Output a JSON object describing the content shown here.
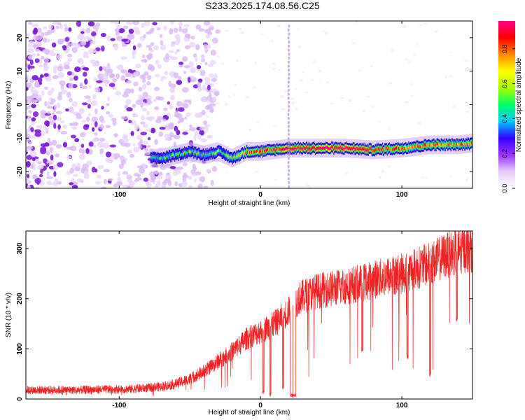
{
  "figure_title": "S233.2025.174.08.56.C25",
  "chart_data": [
    {
      "type": "heatmap",
      "xlabel": "Height of straight line (km)",
      "ylabel": "Frequency (Hz)",
      "xlim": [
        -166,
        150
      ],
      "ylim": [
        -25,
        25
      ],
      "xticks": [
        -100,
        0,
        100
      ],
      "yticks": [
        20,
        10,
        0,
        -10,
        -20
      ],
      "grid": false,
      "colorbar": {
        "label": "Normalized spectral amplitude",
        "range": [
          0,
          0.96
        ],
        "ticks": [
          "0.0",
          "0.2",
          "0.4",
          "0.6",
          "0.8"
        ],
        "colors": [
          "#ffffff",
          "#e6ccff",
          "#9933ff",
          "#3300ff",
          "#00ccff",
          "#00ff66",
          "#aaff00",
          "#ffff00",
          "#ff8800",
          "#ff0000",
          "#ff0088"
        ]
      },
      "ridge": {
        "description_x": [
          -78,
          -70,
          -60,
          -50,
          -40,
          -30,
          -20,
          -10,
          0,
          20,
          40,
          60,
          80,
          100,
          120,
          140,
          150
        ],
        "freq_hz": [
          -16,
          -16,
          -15,
          -14,
          -15,
          -14,
          -16,
          -14,
          -14,
          -13,
          -13,
          -13,
          -13.5,
          -13,
          -12,
          -12,
          -11.5
        ],
        "amplitude": [
          0.4,
          0.45,
          0.5,
          0.5,
          0.45,
          0.5,
          0.6,
          0.75,
          0.8,
          0.9,
          0.95,
          0.95,
          0.85,
          0.8,
          0.8,
          0.75,
          0.7
        ]
      },
      "noise_region_x": [
        -166,
        -40
      ],
      "vertical_artifact_x": 20
    },
    {
      "type": "line",
      "xlabel": "Height of straight line (km)",
      "ylabel": "SNR (10 * v/v)",
      "xlim": [
        -166,
        150
      ],
      "ylim": [
        0,
        335
      ],
      "xticks": [
        -100,
        0,
        100
      ],
      "yticks": [
        0,
        100,
        200,
        300
      ],
      "grid": false,
      "series": [
        {
          "color": "#ee2222",
          "x": [
            -166,
            -150,
            -130,
            -110,
            -90,
            -80,
            -70,
            -60,
            -50,
            -40,
            -30,
            -20,
            -10,
            0,
            10,
            20,
            25,
            30,
            40,
            50,
            60,
            70,
            80,
            90,
            100,
            110,
            120,
            130,
            140,
            150
          ],
          "y": [
            18,
            18,
            18,
            19,
            20,
            22,
            25,
            30,
            40,
            55,
            75,
            95,
            120,
            135,
            150,
            175,
            195,
            205,
            215,
            220,
            225,
            230,
            238,
            245,
            250,
            260,
            270,
            285,
            295,
            300
          ]
        }
      ],
      "dropouts": [
        {
          "x": 23,
          "width_km": 4,
          "y_min": 3
        },
        {
          "x": 2,
          "width_km": 1,
          "y_min": 10
        },
        {
          "x": 7,
          "width_km": 1,
          "y_min": 5
        },
        {
          "x": 16,
          "width_km": 1,
          "y_min": 20
        },
        {
          "x": 72,
          "width_km": 1,
          "y_min": 95
        },
        {
          "x": 104,
          "width_km": 1,
          "y_min": 80
        },
        {
          "x": 120,
          "width_km": 1,
          "y_min": 45
        },
        {
          "x": 139,
          "width_km": 1,
          "y_min": 155
        }
      ]
    }
  ]
}
